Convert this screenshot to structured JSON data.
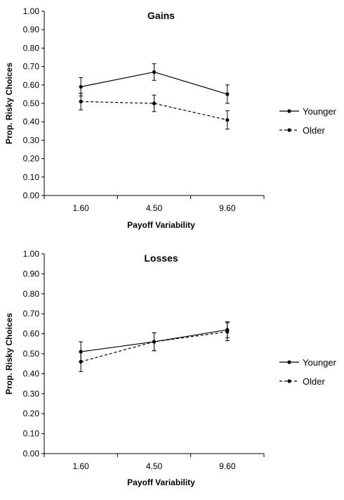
{
  "chart_data": [
    {
      "type": "line",
      "title": "Gains",
      "xlabel": "Payoff Variability",
      "ylabel": "Prop. Risky Choices",
      "categories": [
        "1.60",
        "4.50",
        "9.60"
      ],
      "ylim": [
        0,
        1
      ],
      "yticks": [
        "0.00",
        "0.10",
        "0.20",
        "0.30",
        "0.40",
        "0.50",
        "0.60",
        "0.70",
        "0.80",
        "0.90",
        "1.00"
      ],
      "grid": false,
      "legend": "right",
      "series": [
        {
          "name": "Younger",
          "style": "solid",
          "values": [
            0.59,
            0.67,
            0.55
          ],
          "err": [
            0.05,
            0.045,
            0.05
          ]
        },
        {
          "name": "Older",
          "style": "dashed",
          "values": [
            0.51,
            0.5,
            0.41
          ],
          "err": [
            0.045,
            0.045,
            0.05
          ]
        }
      ]
    },
    {
      "type": "line",
      "title": "Losses",
      "xlabel": "Payoff Variability",
      "ylabel": "Prop. Risky Choices",
      "categories": [
        "1.60",
        "4.50",
        "9.60"
      ],
      "ylim": [
        0,
        1
      ],
      "yticks": [
        "0.00",
        "0.10",
        "0.20",
        "0.30",
        "0.40",
        "0.50",
        "0.60",
        "0.70",
        "0.80",
        "0.90",
        "1.00"
      ],
      "grid": false,
      "legend": "right",
      "series": [
        {
          "name": "Younger",
          "style": "solid",
          "values": [
            0.51,
            0.56,
            0.62
          ],
          "err": [
            0.05,
            0.045,
            0.04
          ]
        },
        {
          "name": "Older",
          "style": "dashed",
          "values": [
            0.46,
            0.56,
            0.61
          ],
          "err": [
            0.05,
            0.045,
            0.045
          ]
        }
      ]
    }
  ]
}
